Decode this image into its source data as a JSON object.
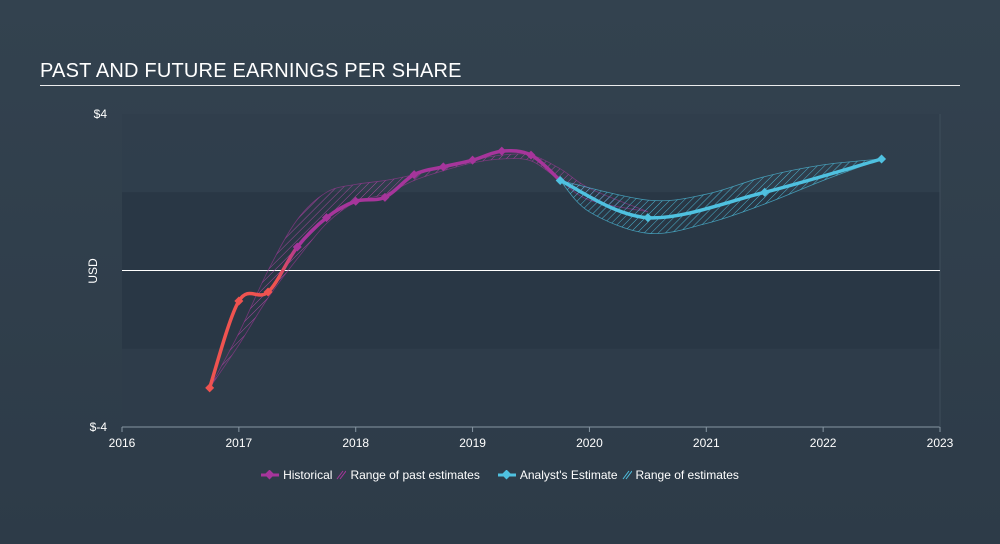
{
  "chart_data": {
    "type": "line",
    "title": "PAST AND FUTURE EARNINGS PER SHARE",
    "ylabel": "USD",
    "xlabel": "",
    "xlim": [
      2016,
      2023
    ],
    "ylim": [
      -4,
      4
    ],
    "x_ticks": [
      "2016",
      "2017",
      "2018",
      "2019",
      "2020",
      "2021",
      "2022",
      "2023"
    ],
    "y_ticks": [
      {
        "value": 4,
        "label": "$4"
      },
      {
        "value": -4,
        "label": "$-4"
      }
    ],
    "shaded_band": [
      -2,
      2
    ],
    "series": [
      {
        "name": "Historical",
        "color_negative": "#ef5350",
        "color_positive": "#a6359b",
        "points": [
          [
            2016.75,
            -3.0
          ],
          [
            2017.0,
            -0.78
          ],
          [
            2017.25,
            -0.55
          ],
          [
            2017.5,
            0.6
          ],
          [
            2017.75,
            1.35
          ],
          [
            2018.0,
            1.77
          ],
          [
            2018.25,
            1.87
          ],
          [
            2018.5,
            2.45
          ],
          [
            2018.75,
            2.65
          ],
          [
            2019.0,
            2.82
          ],
          [
            2019.25,
            3.05
          ],
          [
            2019.5,
            2.95
          ],
          [
            2019.75,
            2.3
          ]
        ]
      },
      {
        "name": "Analyst's Estimate",
        "color": "#4fc1e0",
        "points": [
          [
            2019.75,
            2.3
          ],
          [
            2020.5,
            1.35
          ],
          [
            2021.5,
            2.0
          ],
          [
            2022.5,
            2.85
          ]
        ]
      }
    ],
    "past_estimates_range": {
      "name": "Range of past estimates",
      "color": "#a6359b",
      "upper": [
        [
          2016.75,
          -3.0
        ],
        [
          2017.0,
          -1.6
        ],
        [
          2017.25,
          0.0
        ],
        [
          2017.5,
          1.3
        ],
        [
          2017.75,
          2.0
        ],
        [
          2018.0,
          2.2
        ],
        [
          2018.25,
          2.3
        ],
        [
          2018.5,
          2.45
        ],
        [
          2018.75,
          2.65
        ],
        [
          2019.0,
          2.82
        ],
        [
          2019.25,
          2.95
        ],
        [
          2019.5,
          2.95
        ],
        [
          2019.75,
          2.6
        ],
        [
          2020.0,
          2.1
        ],
        [
          2020.5,
          1.5
        ]
      ],
      "lower": [
        [
          2020.5,
          1.5
        ],
        [
          2020.0,
          1.8
        ],
        [
          2019.75,
          2.3
        ],
        [
          2019.5,
          2.8
        ],
        [
          2019.25,
          2.85
        ],
        [
          2019.0,
          2.75
        ],
        [
          2018.75,
          2.55
        ],
        [
          2018.5,
          2.3
        ],
        [
          2018.25,
          1.95
        ],
        [
          2018.0,
          1.75
        ],
        [
          2017.75,
          1.2
        ],
        [
          2017.5,
          0.3
        ],
        [
          2017.25,
          -0.7
        ],
        [
          2017.0,
          -1.9
        ],
        [
          2016.75,
          -3.0
        ]
      ]
    },
    "estimates_range": {
      "name": "Range of estimates",
      "color": "#4fc1e0",
      "upper": [
        [
          2019.75,
          2.3
        ],
        [
          2020.5,
          1.8
        ],
        [
          2021.0,
          1.95
        ],
        [
          2021.5,
          2.4
        ],
        [
          2022.0,
          2.7
        ],
        [
          2022.5,
          2.85
        ]
      ],
      "lower": [
        [
          2022.5,
          2.85
        ],
        [
          2022.0,
          2.3
        ],
        [
          2021.5,
          1.7
        ],
        [
          2021.0,
          1.2
        ],
        [
          2020.5,
          0.95
        ],
        [
          2020.0,
          1.5
        ],
        [
          2019.75,
          2.3
        ]
      ]
    },
    "legend": [
      "Historical",
      "Range of past estimates",
      "Analyst's Estimate",
      "Range of estimates"
    ],
    "legend_position": "bottom"
  }
}
